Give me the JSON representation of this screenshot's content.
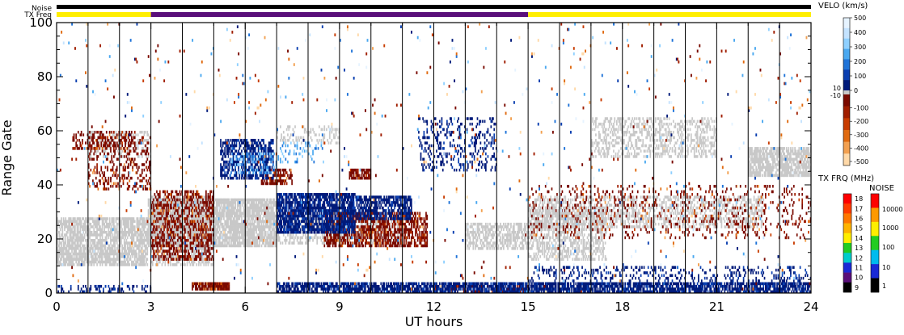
{
  "chart_data": {
    "type": "heatmap",
    "xlabel": "UT hours",
    "ylabel": "Range Gate",
    "xlim": [
      0,
      24
    ],
    "ylim": [
      0,
      100
    ],
    "x_ticks": [
      0,
      3,
      6,
      9,
      12,
      15,
      18,
      21,
      24
    ],
    "y_ticks": [
      0,
      20,
      40,
      60,
      80,
      100
    ],
    "scan_boundaries_hours": [
      1,
      2,
      3,
      4,
      5,
      6,
      7,
      8,
      9,
      10,
      11,
      12,
      13,
      14,
      15,
      16,
      17,
      18,
      19,
      20,
      21,
      22,
      23
    ],
    "top_bars": {
      "noise_label": "Noise",
      "txfreq_label": "TX Freq",
      "noise_color": "#000000",
      "txfreq_segments": [
        {
          "start": 0,
          "end": 3,
          "color": "#ffee00"
        },
        {
          "start": 3,
          "end": 15,
          "color": "#5a0f7a"
        },
        {
          "start": 15,
          "end": 24,
          "color": "#ffee00"
        }
      ]
    },
    "velocity_colorbar": {
      "title": "VELO (km/s)",
      "upper_labels": [
        "500",
        "400",
        "300",
        "200",
        "100",
        "0"
      ],
      "lower_labels": [
        "-100",
        "-200",
        "-300",
        "-400",
        "-500"
      ],
      "pos_colors": [
        "#e6f3ff",
        "#c4e3ff",
        "#8fd0ff",
        "#4aa8f0",
        "#1f73d8",
        "#0b3fb0",
        "#001a7a"
      ],
      "neg_colors": [
        "#7a0a00",
        "#a01e00",
        "#c83c00",
        "#e06a10",
        "#f2a050",
        "#ffd9a8"
      ],
      "ground_scatter_color": "#c8c8c8",
      "ground_labels": [
        "10",
        "-10"
      ]
    },
    "txfreq_colorbar": {
      "title": "TX FRQ (MHz)",
      "labels": [
        "18",
        "17",
        "16",
        "15",
        "14",
        "13",
        "12",
        "11",
        "10",
        "9"
      ],
      "colors": [
        "#ff0000",
        "#ff3c00",
        "#ff7800",
        "#ffb400",
        "#ffee00",
        "#22cc22",
        "#00cccc",
        "#1a2ad6",
        "#5a0f7a",
        "#000000"
      ]
    },
    "noise_colorbar": {
      "title": "NOISE",
      "labels": [
        "10000",
        "1000",
        "100",
        "10",
        "1"
      ],
      "colors": [
        "#ff0000",
        "#ff9900",
        "#ffee00",
        "#22cc22",
        "#00bbee",
        "#1a2ad6",
        "#000000"
      ]
    },
    "scatter_regions": [
      {
        "kind": "ground",
        "x0": 0.0,
        "x1": 2.9,
        "y0": 10,
        "y1": 28,
        "density": 0.75
      },
      {
        "kind": "ground",
        "x0": 2.9,
        "x1": 7.0,
        "y0": 17,
        "y1": 35,
        "density": 0.8
      },
      {
        "kind": "ground",
        "x0": 3.0,
        "x1": 5.0,
        "y0": 10,
        "y1": 36,
        "density": 0.5
      },
      {
        "kind": "ground",
        "x0": 1.0,
        "x1": 3.0,
        "y0": 50,
        "y1": 60,
        "density": 0.35
      },
      {
        "kind": "ground",
        "x0": 7.0,
        "x1": 11.0,
        "y0": 18,
        "y1": 28,
        "density": 0.45
      },
      {
        "kind": "ground",
        "x0": 13.0,
        "x1": 15.0,
        "y0": 16,
        "y1": 26,
        "density": 0.55
      },
      {
        "kind": "ground",
        "x0": 15.0,
        "x1": 22.5,
        "y0": 24,
        "y1": 36,
        "density": 0.4
      },
      {
        "kind": "ground",
        "x0": 15.0,
        "x1": 17.5,
        "y0": 12,
        "y1": 32,
        "density": 0.45
      },
      {
        "kind": "ground",
        "x0": 17.0,
        "x1": 21.0,
        "y0": 50,
        "y1": 65,
        "density": 0.35
      },
      {
        "kind": "ground",
        "x0": 22.0,
        "x1": 24.0,
        "y0": 43,
        "y1": 54,
        "density": 0.75
      },
      {
        "kind": "ground",
        "x0": 7.0,
        "x1": 9.0,
        "y0": 55,
        "y1": 62,
        "density": 0.25
      },
      {
        "kind": "negative",
        "x0": 3.0,
        "x1": 5.0,
        "y0": 12,
        "y1": 38,
        "density": 0.45
      },
      {
        "kind": "negative",
        "x0": 1.0,
        "x1": 3.0,
        "y0": 38,
        "y1": 58,
        "density": 0.25
      },
      {
        "kind": "negative",
        "x0": 4.3,
        "x1": 5.5,
        "y0": 1,
        "y1": 4,
        "density": 0.9
      },
      {
        "kind": "negative",
        "x0": 8.5,
        "x1": 11.8,
        "y0": 17,
        "y1": 30,
        "density": 0.6
      },
      {
        "kind": "negative",
        "x0": 6.5,
        "x1": 7.5,
        "y0": 40,
        "y1": 46,
        "density": 0.55
      },
      {
        "kind": "negative",
        "x0": 9.3,
        "x1": 10.0,
        "y0": 42,
        "y1": 46,
        "density": 0.8
      },
      {
        "kind": "negative",
        "x0": 12.0,
        "x1": 15.0,
        "y0": 0,
        "y1": 3,
        "density": 0.4
      },
      {
        "kind": "negative",
        "x0": 15.0,
        "x1": 24.0,
        "y0": 20,
        "y1": 40,
        "density": 0.12
      },
      {
        "kind": "negative",
        "x0": 0.5,
        "x1": 2.5,
        "y0": 53,
        "y1": 60,
        "density": 0.3
      },
      {
        "kind": "positive-deep",
        "x0": 5.2,
        "x1": 6.9,
        "y0": 42,
        "y1": 57,
        "density": 0.55
      },
      {
        "kind": "positive-deep",
        "x0": 7.0,
        "x1": 9.5,
        "y0": 22,
        "y1": 37,
        "density": 0.8
      },
      {
        "kind": "positive-deep",
        "x0": 9.5,
        "x1": 11.3,
        "y0": 27,
        "y1": 36,
        "density": 0.65
      },
      {
        "kind": "positive-deep",
        "x0": 7.0,
        "x1": 24.0,
        "y0": 0,
        "y1": 4,
        "density": 0.75
      },
      {
        "kind": "positive-deep",
        "x0": 0.0,
        "x1": 3.0,
        "y0": 0,
        "y1": 3,
        "density": 0.25
      },
      {
        "kind": "positive-deep",
        "x0": 11.5,
        "x1": 14.0,
        "y0": 45,
        "y1": 65,
        "density": 0.2
      },
      {
        "kind": "positive-deep",
        "x0": 15.0,
        "x1": 24.0,
        "y0": 3,
        "y1": 10,
        "density": 0.2
      },
      {
        "kind": "positive-light",
        "x0": 5.5,
        "x1": 7.0,
        "y0": 44,
        "y1": 52,
        "density": 0.3
      },
      {
        "kind": "positive-light",
        "x0": 7.0,
        "x1": 8.5,
        "y0": 48,
        "y1": 56,
        "density": 0.15
      }
    ],
    "random_noise_density": 0.012
  }
}
